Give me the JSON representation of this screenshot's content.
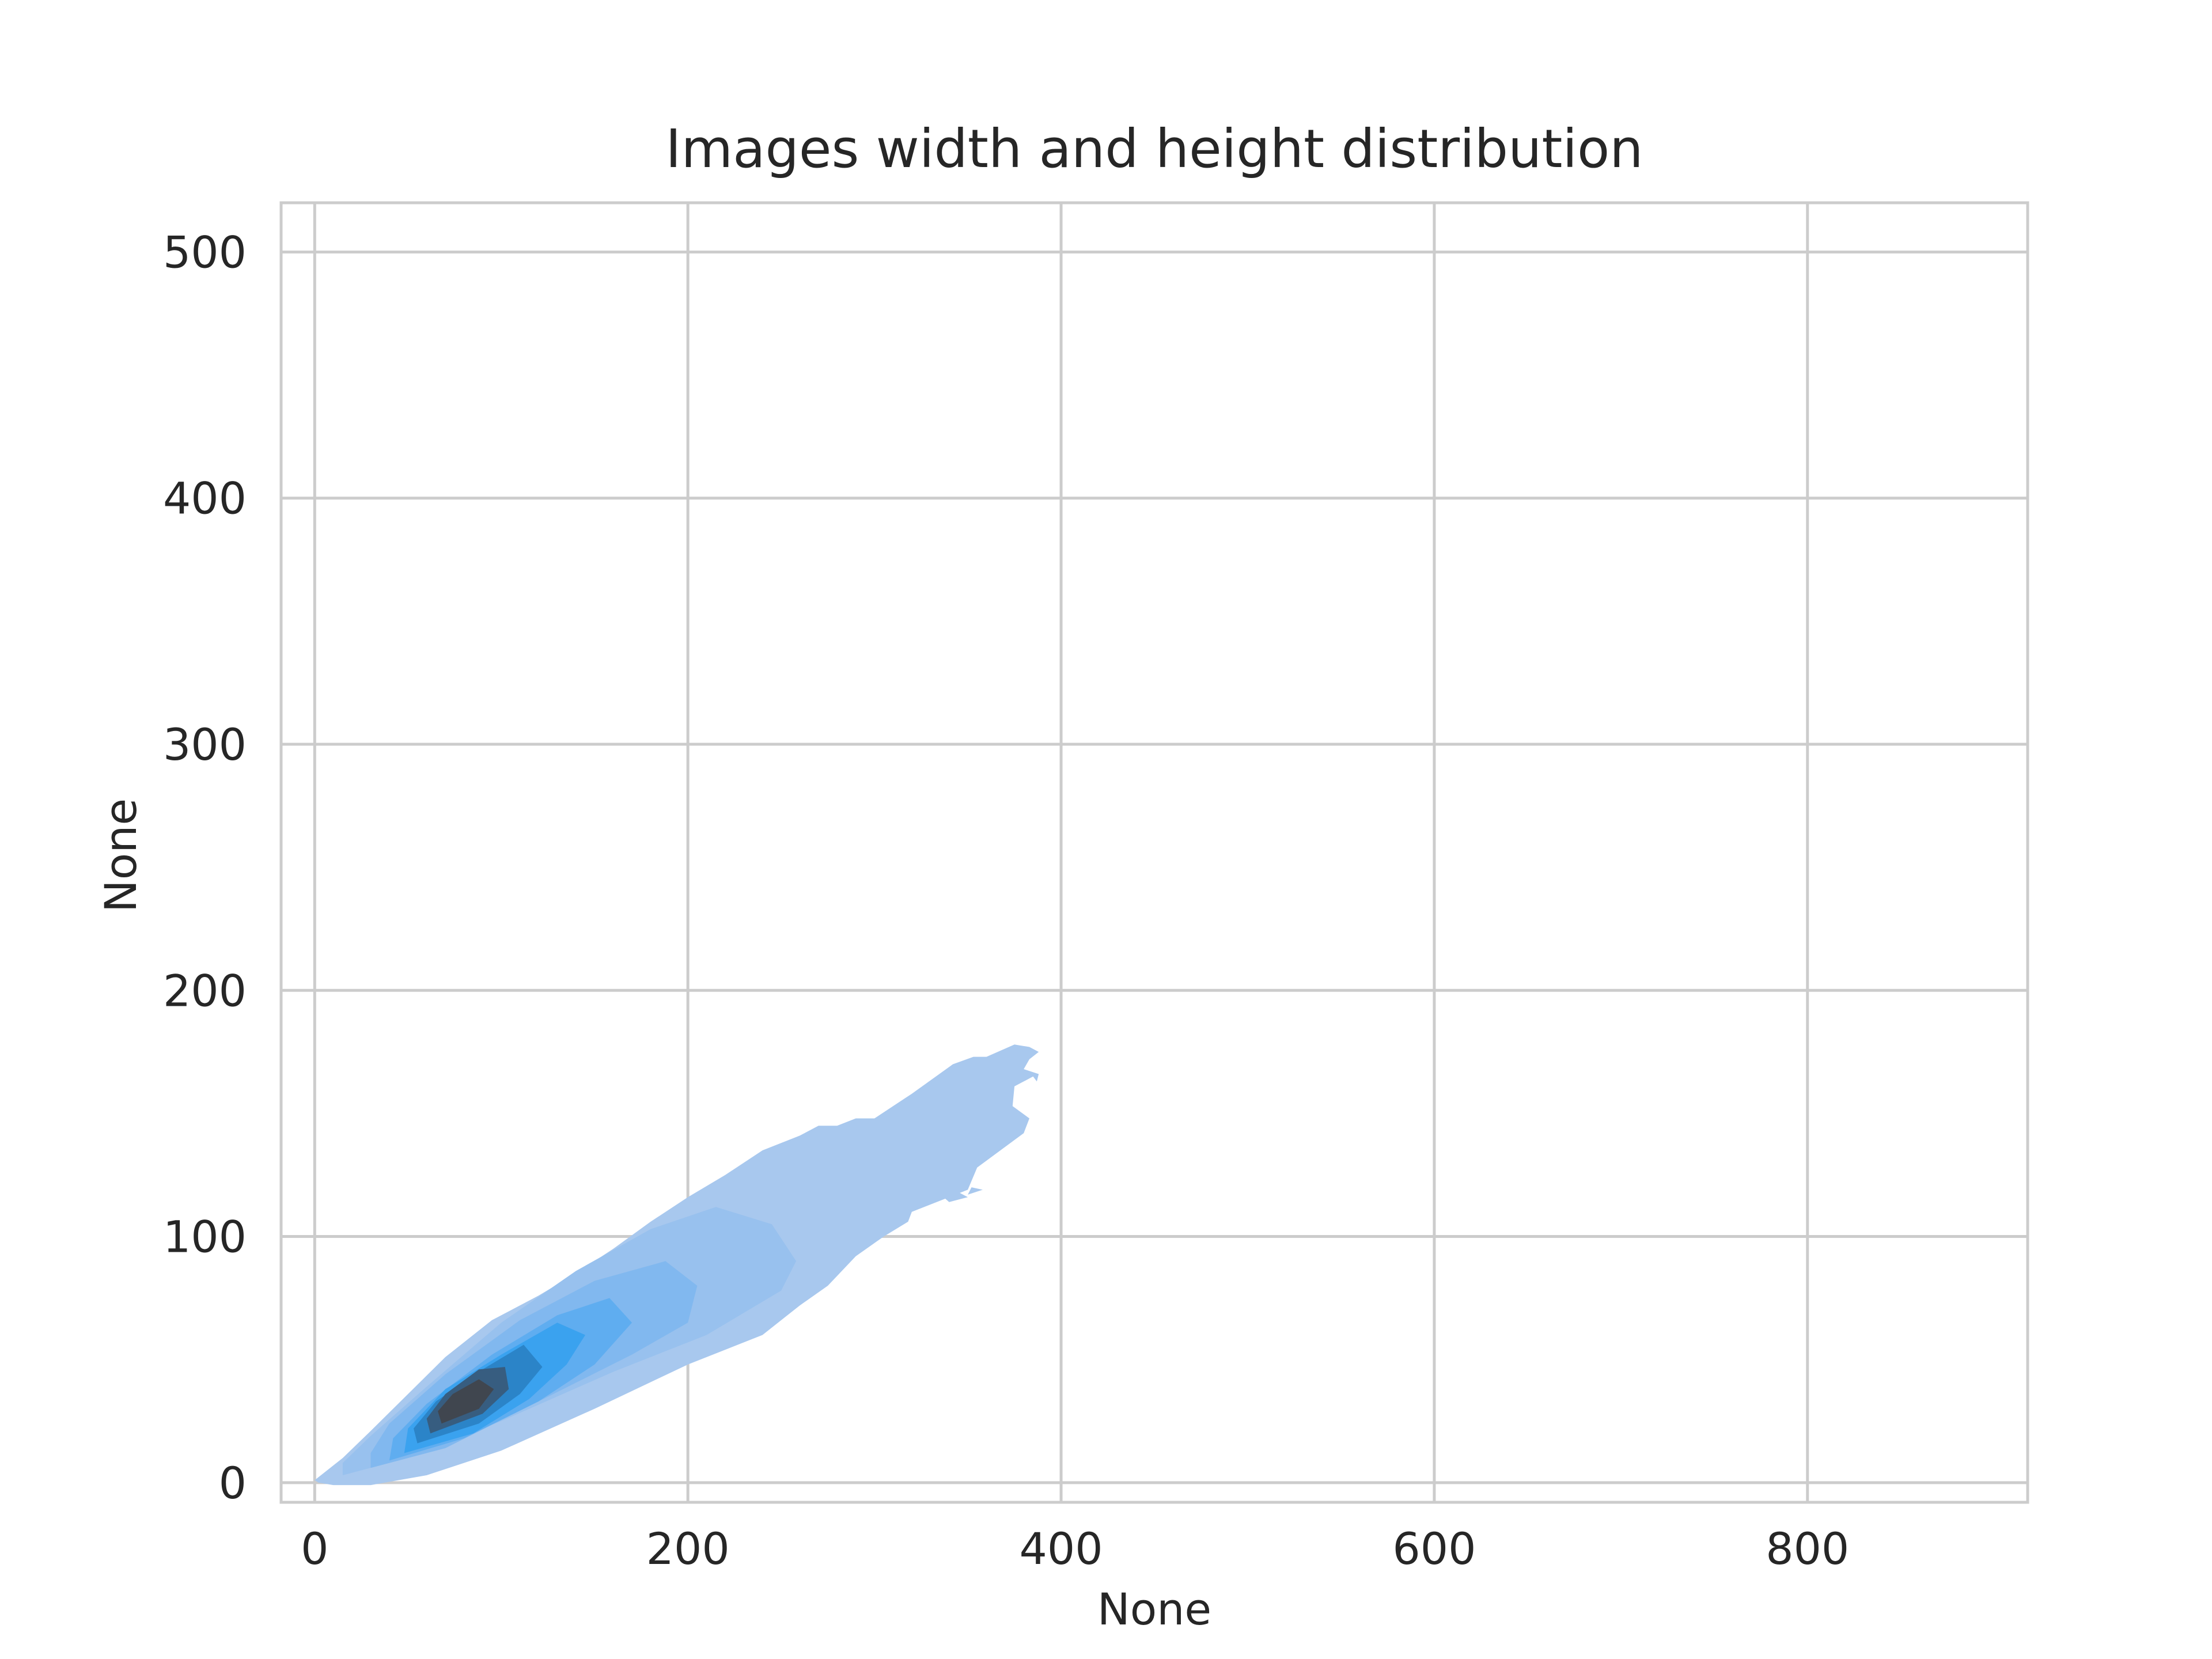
{
  "chart_data": {
    "type": "kde",
    "title": "Images width and height distribution",
    "xlabel": "None",
    "ylabel": "None",
    "xlim": [
      -18,
      918
    ],
    "ylim": [
      -8,
      520
    ],
    "xticks": [
      0,
      200,
      400,
      600,
      800
    ],
    "yticks": [
      0,
      100,
      200,
      300,
      400,
      500
    ],
    "grid": true,
    "fill": true,
    "colors": {
      "grid": "#cccccc",
      "spine": "#cccccc",
      "text": "#262626",
      "levels": [
        "#a8c8ee",
        "#98c1ee",
        "#81b8ef",
        "#5fadf0",
        "#3aa2ef",
        "#2b84c8",
        "#375d80",
        "#40464f"
      ]
    },
    "density_levels": [
      {
        "level": 1,
        "outline": [
          [
            2,
            0
          ],
          [
            10,
            -1
          ],
          [
            30,
            -1
          ],
          [
            60,
            3
          ],
          [
            100,
            13
          ],
          [
            150,
            30
          ],
          [
            200,
            48
          ],
          [
            240,
            60
          ],
          [
            260,
            72
          ],
          [
            275,
            80
          ],
          [
            290,
            92
          ],
          [
            305,
            100
          ],
          [
            318,
            106
          ],
          [
            320,
            110
          ],
          [
            340,
            116
          ],
          [
            350,
            119
          ],
          [
            355,
            128
          ],
          [
            380,
            142
          ],
          [
            383,
            148
          ],
          [
            374,
            153
          ],
          [
            375,
            161
          ],
          [
            385,
            165
          ],
          [
            387,
            163
          ],
          [
            388,
            166
          ],
          [
            380,
            168
          ],
          [
            383,
            172
          ],
          [
            388,
            175
          ],
          [
            383,
            177
          ],
          [
            375,
            178
          ],
          [
            360,
            173
          ],
          [
            353,
            173
          ],
          [
            342,
            170
          ],
          [
            320,
            158
          ],
          [
            300,
            148
          ],
          [
            290,
            148
          ],
          [
            280,
            145
          ],
          [
            270,
            145
          ],
          [
            260,
            141
          ],
          [
            240,
            135
          ],
          [
            220,
            125
          ],
          [
            200,
            116
          ],
          [
            180,
            106
          ],
          [
            160,
            95
          ],
          [
            140,
            85
          ],
          [
            120,
            76
          ],
          [
            95,
            66
          ],
          [
            70,
            51
          ],
          [
            50,
            36
          ],
          [
            30,
            21
          ],
          [
            15,
            10
          ],
          [
            5,
            4
          ],
          [
            0,
            1
          ]
        ]
      },
      {
        "level": 2,
        "outline": [
          [
            15,
            3
          ],
          [
            50,
            10
          ],
          [
            100,
            25
          ],
          [
            160,
            45
          ],
          [
            210,
            60
          ],
          [
            250,
            78
          ],
          [
            258,
            90
          ],
          [
            245,
            105
          ],
          [
            215,
            112
          ],
          [
            180,
            103
          ],
          [
            140,
            86
          ],
          [
            100,
            65
          ],
          [
            60,
            39
          ],
          [
            30,
            19
          ],
          [
            15,
            8
          ]
        ]
      },
      {
        "level": 3,
        "outline": [
          [
            30,
            6
          ],
          [
            70,
            14
          ],
          [
            120,
            33
          ],
          [
            170,
            52
          ],
          [
            200,
            65
          ],
          [
            205,
            80
          ],
          [
            188,
            90
          ],
          [
            150,
            82
          ],
          [
            110,
            66
          ],
          [
            70,
            44
          ],
          [
            40,
            24
          ],
          [
            30,
            12
          ]
        ]
      },
      {
        "level": 4,
        "outline": [
          [
            40,
            9
          ],
          [
            80,
            18
          ],
          [
            120,
            33
          ],
          [
            150,
            48
          ],
          [
            170,
            65
          ],
          [
            158,
            75
          ],
          [
            130,
            68
          ],
          [
            95,
            52
          ],
          [
            60,
            32
          ],
          [
            42,
            18
          ]
        ]
      },
      {
        "level": 5,
        "outline": [
          [
            48,
            12
          ],
          [
            85,
            20
          ],
          [
            115,
            34
          ],
          [
            135,
            48
          ],
          [
            145,
            60
          ],
          [
            130,
            65
          ],
          [
            100,
            52
          ],
          [
            70,
            38
          ],
          [
            50,
            22
          ]
        ]
      },
      {
        "level": 6,
        "outline": [
          [
            55,
            16
          ],
          [
            88,
            24
          ],
          [
            110,
            36
          ],
          [
            122,
            47
          ],
          [
            112,
            56
          ],
          [
            90,
            46
          ],
          [
            65,
            33
          ],
          [
            53,
            22
          ]
        ]
      },
      {
        "level": 7,
        "outline": [
          [
            62,
            20
          ],
          [
            90,
            28
          ],
          [
            104,
            38
          ],
          [
            102,
            47
          ],
          [
            88,
            46
          ],
          [
            70,
            36
          ],
          [
            60,
            26
          ]
        ]
      },
      {
        "level": 8,
        "outline": [
          [
            68,
            24
          ],
          [
            88,
            30
          ],
          [
            96,
            38
          ],
          [
            88,
            42
          ],
          [
            74,
            36
          ],
          [
            66,
            29
          ]
        ]
      }
    ],
    "small_islands": [
      {
        "level": 1,
        "outline": [
          [
            340,
            114
          ],
          [
            350,
            116
          ],
          [
            345,
            118
          ],
          [
            337,
            116
          ]
        ]
      },
      {
        "level": 1,
        "outline": [
          [
            350,
            117
          ],
          [
            358,
            119
          ],
          [
            352,
            120
          ]
        ]
      }
    ]
  }
}
